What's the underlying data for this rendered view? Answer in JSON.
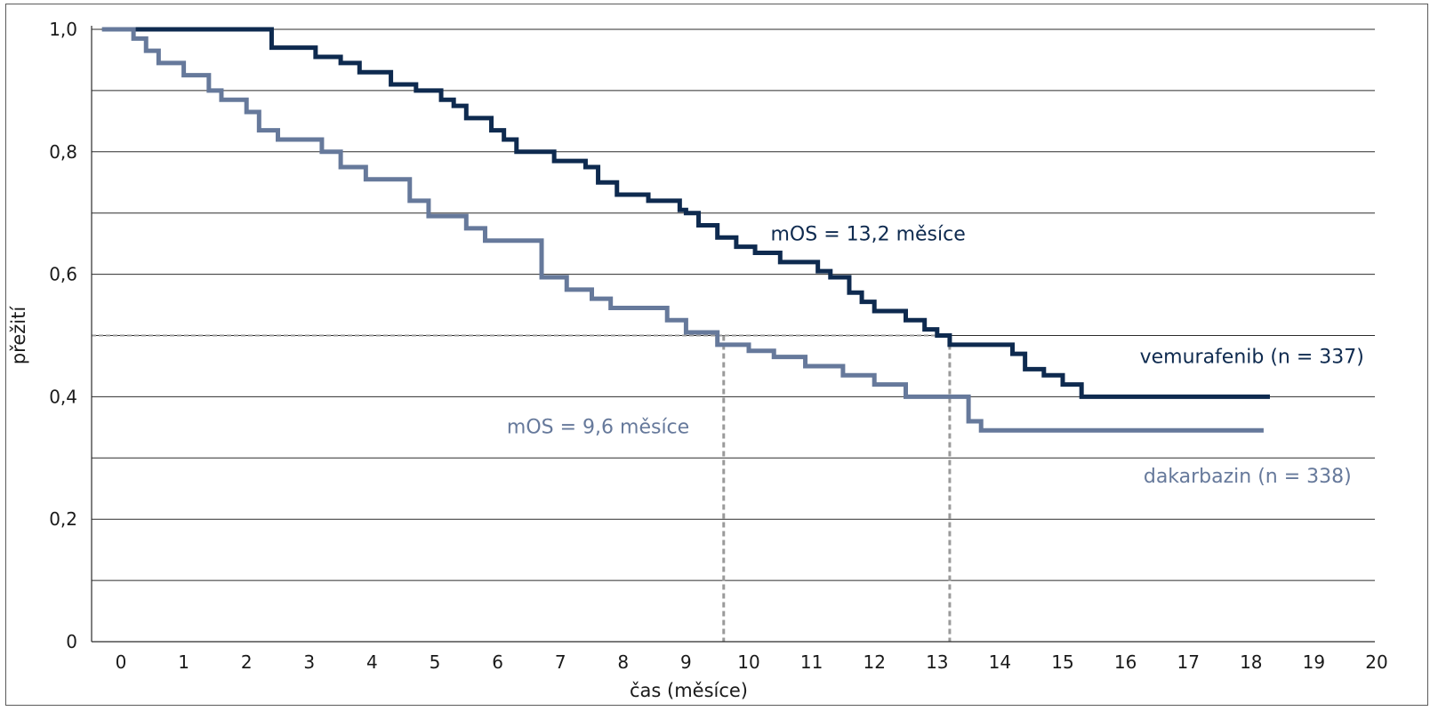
{
  "chart_data": {
    "type": "line",
    "step": true,
    "title": "",
    "xlabel": "čas (měsíce)",
    "ylabel": "přežití",
    "xlim": [
      -0.5,
      20
    ],
    "ylim": [
      0,
      1.0
    ],
    "x_ticks": [
      0,
      1,
      2,
      3,
      4,
      5,
      6,
      7,
      8,
      9,
      10,
      11,
      12,
      13,
      14,
      15,
      16,
      17,
      18,
      19,
      20
    ],
    "x_tick_labels": [
      "0",
      "1",
      "2",
      "3",
      "4",
      "5",
      "6",
      "7",
      "8",
      "9",
      "10",
      "11",
      "12",
      "13",
      "14",
      "15",
      "16",
      "17",
      "18",
      "19",
      "20"
    ],
    "y_ticks": [
      0,
      0.2,
      0.4,
      0.6,
      0.8,
      1.0
    ],
    "y_tick_labels": [
      "0",
      "0,2",
      "0,4",
      "0,6",
      "0,8",
      "1,0"
    ],
    "y_gridlines": [
      0.1,
      0.2,
      0.3,
      0.4,
      0.5,
      0.6,
      0.7,
      0.8,
      0.9,
      1.0
    ],
    "grid": true,
    "legend": "none",
    "series": [
      {
        "name": "vemurafenib (n = 337)",
        "color": "#0e2a4f",
        "x": [
          -0.3,
          2.4,
          3.1,
          3.5,
          3.8,
          4.3,
          4.7,
          5.1,
          5.3,
          5.5,
          5.9,
          6.1,
          6.3,
          6.9,
          7.4,
          7.6,
          7.9,
          8.4,
          8.9,
          9.0,
          9.2,
          9.5,
          9.8,
          10.1,
          10.5,
          11.1,
          11.3,
          11.6,
          11.8,
          12.0,
          12.5,
          12.8,
          13.0,
          13.2,
          14.2,
          14.4,
          14.7,
          15.0,
          15.3,
          16.5,
          18.3
        ],
        "y": [
          1.0,
          0.97,
          0.955,
          0.945,
          0.93,
          0.91,
          0.9,
          0.885,
          0.875,
          0.855,
          0.835,
          0.82,
          0.8,
          0.785,
          0.775,
          0.75,
          0.73,
          0.72,
          0.705,
          0.7,
          0.68,
          0.66,
          0.645,
          0.635,
          0.62,
          0.605,
          0.595,
          0.57,
          0.555,
          0.54,
          0.525,
          0.51,
          0.5,
          0.485,
          0.47,
          0.445,
          0.435,
          0.42,
          0.4,
          0.4,
          0.4
        ]
      },
      {
        "name": "dakarbazin (n = 338)",
        "color": "#66799b",
        "x": [
          -0.3,
          0.2,
          0.4,
          0.6,
          1.0,
          1.4,
          1.6,
          2.0,
          2.2,
          2.5,
          3.2,
          3.5,
          3.9,
          4.6,
          4.9,
          5.5,
          5.8,
          6.7,
          7.1,
          7.5,
          7.8,
          8.7,
          9.0,
          9.5,
          10.0,
          10.4,
          10.9,
          11.5,
          12.0,
          12.5,
          13.5,
          13.7,
          14.0,
          15.0,
          16.0,
          18.2
        ],
        "y": [
          1.0,
          0.985,
          0.965,
          0.945,
          0.925,
          0.9,
          0.885,
          0.865,
          0.835,
          0.82,
          0.8,
          0.775,
          0.755,
          0.72,
          0.695,
          0.675,
          0.655,
          0.595,
          0.575,
          0.56,
          0.545,
          0.525,
          0.505,
          0.485,
          0.475,
          0.465,
          0.45,
          0.435,
          0.42,
          0.4,
          0.36,
          0.345,
          0.345,
          0.345,
          0.345,
          0.345
        ]
      }
    ],
    "median_lines": [
      {
        "x": 9.6,
        "y": 0.5
      },
      {
        "x": 13.2,
        "y": 0.5
      }
    ],
    "annotations": [
      {
        "text": "mOS = 13,2 měsíce",
        "x": 11.9,
        "y": 0.655,
        "color": "#0e2a4f",
        "anchor": "middle"
      },
      {
        "text": "vemurafenib (n = 337)",
        "x": 19.8,
        "y": 0.455,
        "color": "#0e2a4f",
        "anchor": "end"
      },
      {
        "text": "mOS = 9,6 měsíce",
        "x": 7.6,
        "y": 0.34,
        "color": "#66799b",
        "anchor": "middle"
      },
      {
        "text": "dakarbazin (n = 338)",
        "x": 19.6,
        "y": 0.26,
        "color": "#66799b",
        "anchor": "end"
      }
    ]
  }
}
